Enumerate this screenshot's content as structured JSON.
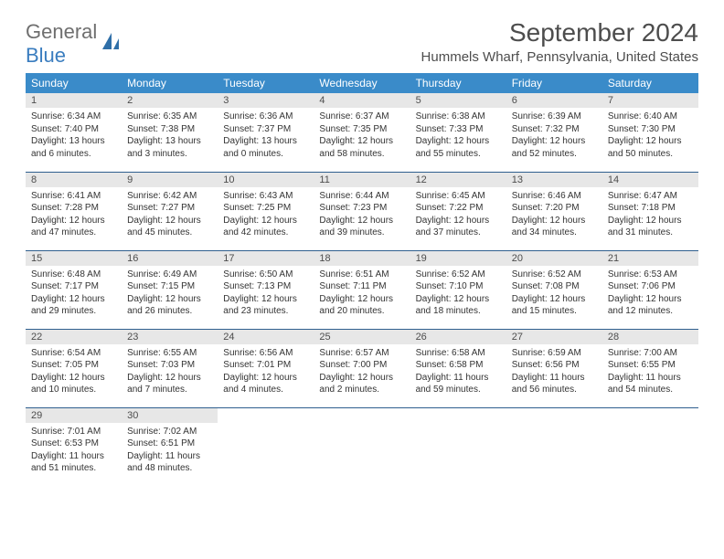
{
  "logo": {
    "text1": "General",
    "text2": "Blue"
  },
  "month_title": "September 2024",
  "location": "Hummels Wharf, Pennsylvania, United States",
  "weekdays": [
    "Sunday",
    "Monday",
    "Tuesday",
    "Wednesday",
    "Thursday",
    "Friday",
    "Saturday"
  ],
  "colors": {
    "header_bg": "#3a8bc9",
    "header_text": "#ffffff",
    "daynum_bg": "#e7e7e7",
    "border": "#2f5f8f",
    "logo_gray": "#6f6f6f",
    "logo_blue": "#3a7dbf"
  },
  "weeks": [
    [
      {
        "n": "1",
        "sr": "Sunrise: 6:34 AM",
        "ss": "Sunset: 7:40 PM",
        "dl": "Daylight: 13 hours and 6 minutes."
      },
      {
        "n": "2",
        "sr": "Sunrise: 6:35 AM",
        "ss": "Sunset: 7:38 PM",
        "dl": "Daylight: 13 hours and 3 minutes."
      },
      {
        "n": "3",
        "sr": "Sunrise: 6:36 AM",
        "ss": "Sunset: 7:37 PM",
        "dl": "Daylight: 13 hours and 0 minutes."
      },
      {
        "n": "4",
        "sr": "Sunrise: 6:37 AM",
        "ss": "Sunset: 7:35 PM",
        "dl": "Daylight: 12 hours and 58 minutes."
      },
      {
        "n": "5",
        "sr": "Sunrise: 6:38 AM",
        "ss": "Sunset: 7:33 PM",
        "dl": "Daylight: 12 hours and 55 minutes."
      },
      {
        "n": "6",
        "sr": "Sunrise: 6:39 AM",
        "ss": "Sunset: 7:32 PM",
        "dl": "Daylight: 12 hours and 52 minutes."
      },
      {
        "n": "7",
        "sr": "Sunrise: 6:40 AM",
        "ss": "Sunset: 7:30 PM",
        "dl": "Daylight: 12 hours and 50 minutes."
      }
    ],
    [
      {
        "n": "8",
        "sr": "Sunrise: 6:41 AM",
        "ss": "Sunset: 7:28 PM",
        "dl": "Daylight: 12 hours and 47 minutes."
      },
      {
        "n": "9",
        "sr": "Sunrise: 6:42 AM",
        "ss": "Sunset: 7:27 PM",
        "dl": "Daylight: 12 hours and 45 minutes."
      },
      {
        "n": "10",
        "sr": "Sunrise: 6:43 AM",
        "ss": "Sunset: 7:25 PM",
        "dl": "Daylight: 12 hours and 42 minutes."
      },
      {
        "n": "11",
        "sr": "Sunrise: 6:44 AM",
        "ss": "Sunset: 7:23 PM",
        "dl": "Daylight: 12 hours and 39 minutes."
      },
      {
        "n": "12",
        "sr": "Sunrise: 6:45 AM",
        "ss": "Sunset: 7:22 PM",
        "dl": "Daylight: 12 hours and 37 minutes."
      },
      {
        "n": "13",
        "sr": "Sunrise: 6:46 AM",
        "ss": "Sunset: 7:20 PM",
        "dl": "Daylight: 12 hours and 34 minutes."
      },
      {
        "n": "14",
        "sr": "Sunrise: 6:47 AM",
        "ss": "Sunset: 7:18 PM",
        "dl": "Daylight: 12 hours and 31 minutes."
      }
    ],
    [
      {
        "n": "15",
        "sr": "Sunrise: 6:48 AM",
        "ss": "Sunset: 7:17 PM",
        "dl": "Daylight: 12 hours and 29 minutes."
      },
      {
        "n": "16",
        "sr": "Sunrise: 6:49 AM",
        "ss": "Sunset: 7:15 PM",
        "dl": "Daylight: 12 hours and 26 minutes."
      },
      {
        "n": "17",
        "sr": "Sunrise: 6:50 AM",
        "ss": "Sunset: 7:13 PM",
        "dl": "Daylight: 12 hours and 23 minutes."
      },
      {
        "n": "18",
        "sr": "Sunrise: 6:51 AM",
        "ss": "Sunset: 7:11 PM",
        "dl": "Daylight: 12 hours and 20 minutes."
      },
      {
        "n": "19",
        "sr": "Sunrise: 6:52 AM",
        "ss": "Sunset: 7:10 PM",
        "dl": "Daylight: 12 hours and 18 minutes."
      },
      {
        "n": "20",
        "sr": "Sunrise: 6:52 AM",
        "ss": "Sunset: 7:08 PM",
        "dl": "Daylight: 12 hours and 15 minutes."
      },
      {
        "n": "21",
        "sr": "Sunrise: 6:53 AM",
        "ss": "Sunset: 7:06 PM",
        "dl": "Daylight: 12 hours and 12 minutes."
      }
    ],
    [
      {
        "n": "22",
        "sr": "Sunrise: 6:54 AM",
        "ss": "Sunset: 7:05 PM",
        "dl": "Daylight: 12 hours and 10 minutes."
      },
      {
        "n": "23",
        "sr": "Sunrise: 6:55 AM",
        "ss": "Sunset: 7:03 PM",
        "dl": "Daylight: 12 hours and 7 minutes."
      },
      {
        "n": "24",
        "sr": "Sunrise: 6:56 AM",
        "ss": "Sunset: 7:01 PM",
        "dl": "Daylight: 12 hours and 4 minutes."
      },
      {
        "n": "25",
        "sr": "Sunrise: 6:57 AM",
        "ss": "Sunset: 7:00 PM",
        "dl": "Daylight: 12 hours and 2 minutes."
      },
      {
        "n": "26",
        "sr": "Sunrise: 6:58 AM",
        "ss": "Sunset: 6:58 PM",
        "dl": "Daylight: 11 hours and 59 minutes."
      },
      {
        "n": "27",
        "sr": "Sunrise: 6:59 AM",
        "ss": "Sunset: 6:56 PM",
        "dl": "Daylight: 11 hours and 56 minutes."
      },
      {
        "n": "28",
        "sr": "Sunrise: 7:00 AM",
        "ss": "Sunset: 6:55 PM",
        "dl": "Daylight: 11 hours and 54 minutes."
      }
    ],
    [
      {
        "n": "29",
        "sr": "Sunrise: 7:01 AM",
        "ss": "Sunset: 6:53 PM",
        "dl": "Daylight: 11 hours and 51 minutes."
      },
      {
        "n": "30",
        "sr": "Sunrise: 7:02 AM",
        "ss": "Sunset: 6:51 PM",
        "dl": "Daylight: 11 hours and 48 minutes."
      },
      null,
      null,
      null,
      null,
      null
    ]
  ]
}
